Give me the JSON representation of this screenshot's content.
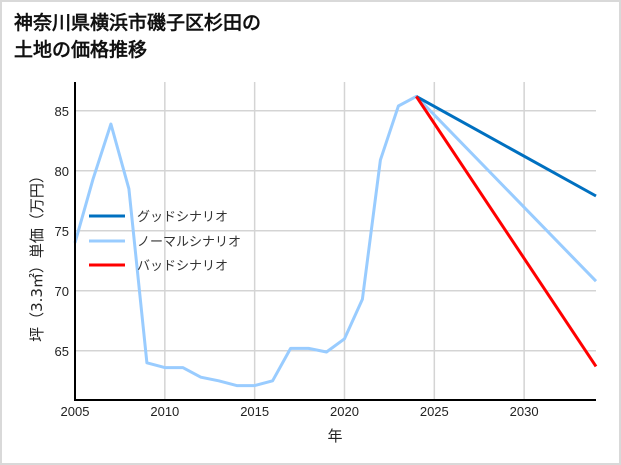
{
  "title": {
    "line1": "神奈川県横浜市磯子区杉田の",
    "line2": "土地の価格推移"
  },
  "chart_data": {
    "type": "line",
    "title": "神奈川県横浜市磯子区杉田の土地の価格推移",
    "xlabel": "年",
    "ylabel": "坪（3.3㎡）単価（万円）",
    "xlim": [
      2005,
      2034
    ],
    "ylim": [
      60.9,
      87.4
    ],
    "xticks": [
      2005,
      2010,
      2015,
      2020,
      2025,
      2030
    ],
    "yticks": [
      65,
      70,
      75,
      80,
      85
    ],
    "grid": true,
    "legend_position": "center-left",
    "series": [
      {
        "name": "グッドシナリオ",
        "color": "#0070c0",
        "x": [
          2024,
          2034
        ],
        "values": [
          86.2,
          77.9
        ]
      },
      {
        "name": "ノーマルシナリオ",
        "color": "#99ccff",
        "x": [
          2005,
          2006,
          2007,
          2008,
          2009,
          2010,
          2011,
          2012,
          2013,
          2014,
          2015,
          2016,
          2017,
          2018,
          2019,
          2020,
          2021,
          2022,
          2023,
          2024,
          2034
        ],
        "values": [
          74.0,
          79.3,
          83.9,
          78.5,
          64.0,
          63.6,
          63.6,
          62.8,
          62.5,
          62.1,
          62.1,
          62.5,
          65.2,
          65.2,
          64.9,
          66.0,
          69.3,
          80.9,
          85.4,
          86.2,
          70.8
        ]
      },
      {
        "name": "バッドシナリオ",
        "color": "#ff0000",
        "x": [
          2024,
          2034
        ],
        "values": [
          86.2,
          63.7
        ]
      }
    ]
  },
  "legend": {
    "good": "グッドシナリオ",
    "normal": "ノーマルシナリオ",
    "bad": "バッドシナリオ"
  },
  "axes": {
    "xlabel": "年",
    "ylabel": "坪（3.3㎡）単価（万円）"
  }
}
